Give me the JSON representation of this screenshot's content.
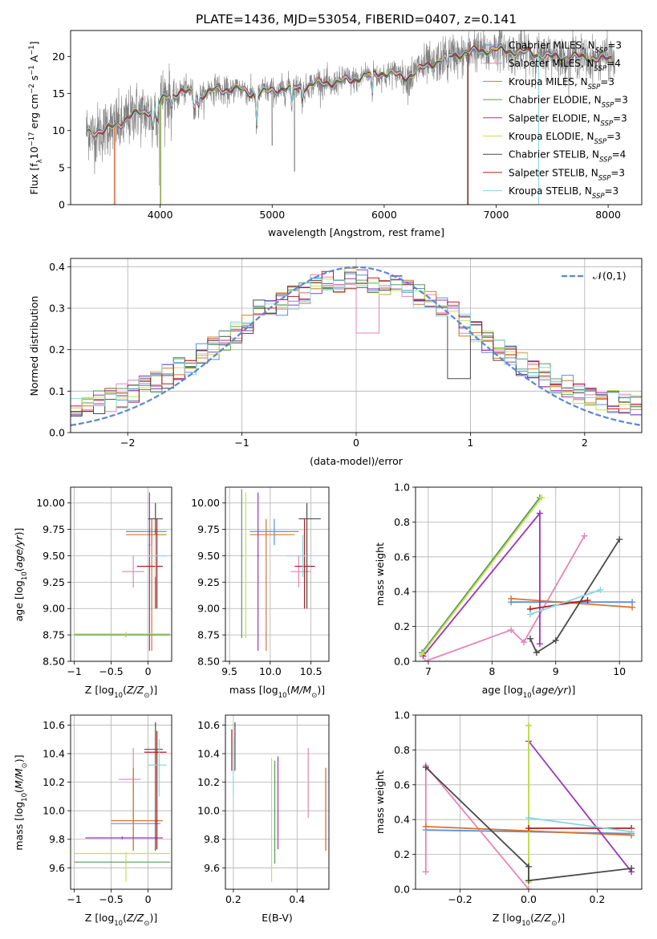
{
  "figure": {
    "title": "PLATE=1436, MJD=53054, FIBERID=0407, z=0.141"
  },
  "models": [
    {
      "name": "Chabrier MILES",
      "nssp": "3",
      "color": "#5a8ee0"
    },
    {
      "name": "Salpeter MILES",
      "nssp": "4",
      "color": "#e784b6"
    },
    {
      "name": "Kroupa MILES",
      "nssp": "3",
      "color": "#d8762c"
    },
    {
      "name": "Chabrier ELODIE",
      "nssp": "3",
      "color": "#5a9a5a"
    },
    {
      "name": "Salpeter ELODIE",
      "nssp": "3",
      "color": "#9a36b8"
    },
    {
      "name": "Kroupa ELODIE",
      "nssp": "3",
      "color": "#c8e050"
    },
    {
      "name": "Chabrier STELIB",
      "nssp": "4",
      "color": "#4a4a4a"
    },
    {
      "name": "Salpeter STELIB",
      "nssp": "3",
      "color": "#b41e1e"
    },
    {
      "name": "Kroupa STELIB",
      "nssp": "3",
      "color": "#80d8e0"
    }
  ],
  "data_color": "#808080",
  "gauss_color": "#5b86d6",
  "chart_data": [
    {
      "id": "spectrum",
      "type": "line",
      "xlabel": "wavelength [Angstrom, rest frame]",
      "ylabel": "Flux [f_λ10^-17 erg cm^-2 s^-1 A^-1]",
      "xlim": [
        3200,
        8300
      ],
      "ylim": [
        0,
        23.5
      ],
      "xticks": [
        4000,
        5000,
        6000,
        7000,
        8000
      ],
      "yticks": [
        0,
        5,
        10,
        15,
        20
      ],
      "grid": false,
      "legend": "right",
      "continuum_knots": [
        [
          3340,
          9.8
        ],
        [
          3500,
          10.0
        ],
        [
          3650,
          11.0
        ],
        [
          3750,
          12.0
        ],
        [
          3850,
          12.5
        ],
        [
          3950,
          13.0
        ],
        [
          4050,
          14.6
        ],
        [
          4200,
          15.2
        ],
        [
          4350,
          14.8
        ],
        [
          4500,
          15.5
        ],
        [
          4700,
          15.5
        ],
        [
          4900,
          15.0
        ],
        [
          5000,
          15.4
        ],
        [
          5200,
          15.8
        ],
        [
          5400,
          16.3
        ],
        [
          5600,
          16.5
        ],
        [
          5800,
          17.3
        ],
        [
          6000,
          17.8
        ],
        [
          6200,
          17.3
        ],
        [
          6400,
          18.8
        ],
        [
          6600,
          20.2
        ],
        [
          6800,
          20.6
        ],
        [
          7000,
          21.0
        ],
        [
          7200,
          20.6
        ],
        [
          7400,
          20.2
        ],
        [
          7600,
          19.9
        ],
        [
          7800,
          19.8
        ],
        [
          8000,
          19.7
        ],
        [
          8060,
          19.6
        ]
      ],
      "observed_range": [
        3340,
        8060
      ],
      "model_drops": [
        3590,
        3600,
        3590,
        4005,
        4000,
        4000,
        6750,
        6745,
        7380
      ]
    },
    {
      "id": "residuals",
      "type": "line",
      "xlabel": "(data-model)/error",
      "ylabel": "Normed distribution",
      "xlim": [
        -2.5,
        2.5
      ],
      "ylim": [
        0,
        0.42
      ],
      "xticks": [
        -2,
        -1,
        0,
        1,
        2
      ],
      "yticks": [
        0,
        0.1,
        0.2,
        0.3,
        0.4
      ],
      "grid": true,
      "legend": "top-right",
      "gauss_label": "𝒩(0,1)",
      "bin_width": 0.1
    },
    {
      "id": "age-vs-z",
      "type": "scatter",
      "xlabel": "Z [log10(Z/Z☉)]",
      "ylabel": "age [log10(age/yr)]",
      "xlim": [
        -1.05,
        0.32
      ],
      "ylim": [
        8.5,
        10.15
      ],
      "xticks": [
        -1.0,
        -0.5,
        0.0
      ],
      "yticks": [
        8.5,
        8.75,
        9.0,
        9.25,
        9.5,
        9.75,
        10.0
      ],
      "grid": true,
      "errorbars": [
        {
          "series": 0,
          "x": 0.05,
          "xlo": -0.3,
          "xhi": 0.25,
          "y": 9.73,
          "ylo": 9.6,
          "yhi": 9.85
        },
        {
          "series": 1,
          "x": -0.2,
          "xlo": -0.35,
          "xhi": -0.05,
          "y": 9.35,
          "ylo": 9.2,
          "yhi": 9.5
        },
        {
          "series": 2,
          "x": 0.05,
          "xlo": -0.3,
          "xhi": 0.25,
          "y": 9.7,
          "ylo": 8.6,
          "yhi": 9.85
        },
        {
          "series": 3,
          "x": -0.3,
          "xlo": -1.0,
          "xhi": 0.3,
          "y": 8.75,
          "ylo": 8.73,
          "yhi": 8.77
        },
        {
          "series": 4,
          "x": 0.02,
          "xlo": 0.01,
          "xhi": 0.03,
          "y": 9.6,
          "ylo": 8.6,
          "yhi": 10.1
        },
        {
          "series": 5,
          "x": -0.3,
          "xlo": -1.0,
          "xhi": 0.3,
          "y": 8.76,
          "ylo": 8.74,
          "yhi": 8.78
        },
        {
          "series": 6,
          "x": 0.1,
          "xlo": 0.0,
          "xhi": 0.2,
          "y": 9.85,
          "ylo": 9.0,
          "yhi": 10.0
        },
        {
          "series": 7,
          "x": 0.12,
          "xlo": -0.15,
          "xhi": 0.2,
          "y": 9.4,
          "ylo": 9.0,
          "yhi": 9.85
        },
        {
          "series": 8,
          "x": 0.1,
          "xlo": 0.0,
          "xhi": 0.25,
          "y": 9.5,
          "ylo": 9.3,
          "yhi": 9.7
        }
      ]
    },
    {
      "id": "age-vs-mass",
      "type": "scatter",
      "xlabel": "mass [log10(M/M☉)]",
      "ylabel": "",
      "xlim": [
        9.45,
        10.72
      ],
      "ylim": [
        8.5,
        10.15
      ],
      "xticks": [
        9.5,
        10.0,
        10.5
      ],
      "yticks": [
        8.5,
        8.75,
        9.0,
        9.25,
        9.5,
        9.75,
        10.0
      ],
      "grid": true,
      "errorbars": [
        {
          "series": 0,
          "x": 10.05,
          "xlo": 9.75,
          "xhi": 10.35,
          "y": 9.73,
          "ylo": 9.6,
          "yhi": 9.85
        },
        {
          "series": 1,
          "x": 10.35,
          "xlo": 10.25,
          "xhi": 10.5,
          "y": 9.35,
          "ylo": 9.2,
          "yhi": 9.5
        },
        {
          "series": 2,
          "x": 9.95,
          "xlo": 9.75,
          "xhi": 10.3,
          "y": 9.7,
          "ylo": 8.6,
          "yhi": 9.85
        },
        {
          "series": 3,
          "x": 9.65,
          "xlo": 9.64,
          "xhi": 9.66,
          "y": 9.5,
          "ylo": 8.72,
          "yhi": 10.13
        },
        {
          "series": 4,
          "x": 9.85,
          "xlo": 9.84,
          "xhi": 9.86,
          "y": 9.5,
          "ylo": 8.6,
          "yhi": 10.1
        },
        {
          "series": 5,
          "x": 9.7,
          "xlo": 9.69,
          "xhi": 9.71,
          "y": 9.5,
          "ylo": 8.72,
          "yhi": 10.1
        },
        {
          "series": 6,
          "x": 10.45,
          "xlo": 10.35,
          "xhi": 10.62,
          "y": 9.85,
          "ylo": 9.0,
          "yhi": 10.0
        },
        {
          "series": 7,
          "x": 10.42,
          "xlo": 10.3,
          "xhi": 10.55,
          "y": 9.4,
          "ylo": 9.0,
          "yhi": 9.85
        },
        {
          "series": 8,
          "x": 10.4,
          "xlo": 10.2,
          "xhi": 10.45,
          "y": 9.5,
          "ylo": 9.3,
          "yhi": 9.7
        }
      ]
    },
    {
      "id": "weight-vs-age",
      "type": "line",
      "xlabel": "age [log10(age/yr)]",
      "ylabel": "mass weight",
      "xlim": [
        6.8,
        10.35
      ],
      "ylim": [
        0,
        1
      ],
      "xticks": [
        7,
        8,
        9,
        10
      ],
      "yticks": [
        0.0,
        0.2,
        0.4,
        0.6,
        0.8,
        1.0
      ],
      "grid": true,
      "series": [
        {
          "series": 0,
          "points": [
            [
              8.3,
              0.34
            ],
            [
              10.2,
              0.34
            ]
          ]
        },
        {
          "series": 1,
          "points": [
            [
              6.95,
              0.0
            ],
            [
              8.3,
              0.18
            ],
            [
              8.5,
              0.11
            ],
            [
              9.45,
              0.72
            ]
          ]
        },
        {
          "series": 2,
          "points": [
            [
              8.3,
              0.36
            ],
            [
              10.2,
              0.31
            ]
          ]
        },
        {
          "series": 3,
          "points": [
            [
              6.9,
              0.05
            ],
            [
              8.75,
              0.94
            ]
          ]
        },
        {
          "series": 4,
          "points": [
            [
              6.92,
              0.03
            ],
            [
              8.75,
              0.85
            ],
            [
              8.75,
              0.1
            ]
          ]
        },
        {
          "series": 5,
          "points": [
            [
              6.9,
              0.04
            ],
            [
              8.78,
              0.94
            ]
          ]
        },
        {
          "series": 6,
          "points": [
            [
              8.6,
              0.13
            ],
            [
              8.7,
              0.05
            ],
            [
              9.0,
              0.12
            ],
            [
              10.0,
              0.7
            ]
          ]
        },
        {
          "series": 7,
          "points": [
            [
              8.6,
              0.3
            ],
            [
              9.5,
              0.35
            ]
          ]
        },
        {
          "series": 8,
          "points": [
            [
              8.6,
              0.27
            ],
            [
              9.7,
              0.41
            ]
          ]
        }
      ]
    },
    {
      "id": "mass-vs-z",
      "type": "scatter",
      "xlabel": "Z [log10(Z/Z☉)]",
      "ylabel": "mass [log10(M/M☉)]",
      "xlim": [
        -1.05,
        0.32
      ],
      "ylim": [
        9.45,
        10.67
      ],
      "xticks": [
        -1.0,
        -0.5,
        0.0
      ],
      "yticks": [
        9.6,
        9.8,
        10.0,
        10.2,
        10.4,
        10.6
      ],
      "grid": true,
      "errorbars": [
        {
          "series": 0,
          "x": -0.2,
          "xlo": -0.5,
          "xhi": 0.17,
          "y": 9.91,
          "ylo": 9.72,
          "yhi": 10.3
        },
        {
          "series": 1,
          "x": -0.2,
          "xlo": -0.4,
          "xhi": -0.1,
          "y": 10.22,
          "ylo": 10.1,
          "yhi": 10.44
        },
        {
          "series": 2,
          "x": -0.2,
          "xlo": -0.5,
          "xhi": 0.2,
          "y": 9.93,
          "ylo": 9.72,
          "yhi": 10.3
        },
        {
          "series": 3,
          "x": -0.3,
          "xlo": -1.0,
          "xhi": 0.3,
          "y": 9.64,
          "ylo": 9.63,
          "yhi": 9.65
        },
        {
          "series": 4,
          "x": -0.35,
          "xlo": -0.85,
          "xhi": 0.2,
          "y": 9.81,
          "ylo": 9.8,
          "yhi": 9.82
        },
        {
          "series": 5,
          "x": -0.3,
          "xlo": -1.0,
          "xhi": 0.3,
          "y": 9.7,
          "ylo": 9.5,
          "yhi": 9.71
        },
        {
          "series": 6,
          "x": 0.1,
          "xlo": -0.05,
          "xhi": 0.2,
          "y": 10.43,
          "ylo": 9.72,
          "yhi": 10.62
        },
        {
          "series": 7,
          "x": 0.12,
          "xlo": -0.05,
          "xhi": 0.25,
          "y": 10.41,
          "ylo": 9.73,
          "yhi": 10.56
        },
        {
          "series": 8,
          "x": 0.15,
          "xlo": 0.0,
          "xhi": 0.25,
          "y": 10.32,
          "ylo": 10.1,
          "yhi": 10.5
        }
      ]
    },
    {
      "id": "mass-vs-ebv",
      "type": "scatter",
      "xlabel": "E(B-V)",
      "ylabel": "",
      "xlim": [
        0.175,
        0.5
      ],
      "ylim": [
        9.45,
        10.67
      ],
      "xticks": [
        0.2,
        0.4
      ],
      "yticks": [
        9.6,
        9.8,
        10.0,
        10.2,
        10.4,
        10.6
      ],
      "grid": true,
      "errorbars": [
        {
          "series": 0,
          "x": 0.49,
          "xlo": 0.49,
          "xhi": 0.49,
          "y": 9.95,
          "ylo": 9.72,
          "yhi": 10.3
        },
        {
          "series": 1,
          "x": 0.435,
          "xlo": 0.435,
          "xhi": 0.435,
          "y": 10.2,
          "ylo": 9.95,
          "yhi": 10.44
        },
        {
          "series": 2,
          "x": 0.49,
          "xlo": 0.49,
          "xhi": 0.49,
          "y": 10.0,
          "ylo": 9.72,
          "yhi": 10.3
        },
        {
          "series": 3,
          "x": 0.33,
          "xlo": 0.33,
          "xhi": 0.33,
          "y": 10.0,
          "ylo": 9.63,
          "yhi": 10.35
        },
        {
          "series": 4,
          "x": 0.34,
          "xlo": 0.34,
          "xhi": 0.34,
          "y": 10.1,
          "ylo": 9.73,
          "yhi": 10.38
        },
        {
          "series": 5,
          "x": 0.32,
          "xlo": 0.32,
          "xhi": 0.32,
          "y": 10.0,
          "ylo": 9.5,
          "yhi": 10.37
        },
        {
          "series": 6,
          "x": 0.205,
          "xlo": 0.205,
          "xhi": 0.205,
          "y": 10.45,
          "ylo": 10.28,
          "yhi": 10.62
        },
        {
          "series": 7,
          "x": 0.195,
          "xlo": 0.195,
          "xhi": 0.195,
          "y": 10.41,
          "ylo": 10.28,
          "yhi": 10.57
        },
        {
          "series": 8,
          "x": 0.2,
          "xlo": 0.2,
          "xhi": 0.2,
          "y": 10.32,
          "ylo": 10.1,
          "yhi": 10.5
        }
      ]
    },
    {
      "id": "weight-vs-z",
      "type": "line",
      "xlabel": "Z [log10(Z/Z☉)]",
      "ylabel": "mass weight",
      "xlim": [
        -0.33,
        0.33
      ],
      "ylim": [
        0,
        1
      ],
      "xticks": [
        -0.2,
        0.0,
        0.2
      ],
      "yticks": [
        0.0,
        0.2,
        0.4,
        0.6,
        0.8,
        1.0
      ],
      "grid": true,
      "series": [
        {
          "series": 0,
          "points": [
            [
              -0.3,
              0.34
            ],
            [
              0.3,
              0.32
            ]
          ]
        },
        {
          "series": 1,
          "points": [
            [
              -0.3,
              0.1
            ],
            [
              -0.3,
              0.71
            ],
            [
              0.0,
              0.0
            ]
          ]
        },
        {
          "series": 2,
          "points": [
            [
              -0.3,
              0.36
            ],
            [
              0.3,
              0.31
            ]
          ]
        },
        {
          "series": 3,
          "points": [
            [
              0.0,
              0.05
            ],
            [
              0.0,
              0.94
            ]
          ]
        },
        {
          "series": 4,
          "points": [
            [
              0.0,
              0.85
            ],
            [
              0.3,
              0.1
            ]
          ]
        },
        {
          "series": 5,
          "points": [
            [
              0.0,
              0.04
            ],
            [
              0.0,
              0.94
            ]
          ]
        },
        {
          "series": 6,
          "points": [
            [
              -0.3,
              0.7
            ],
            [
              0.0,
              0.13
            ],
            [
              0.0,
              0.05
            ],
            [
              0.3,
              0.12
            ]
          ]
        },
        {
          "series": 7,
          "points": [
            [
              0.0,
              0.35
            ],
            [
              0.3,
              0.35
            ]
          ]
        },
        {
          "series": 8,
          "points": [
            [
              0.0,
              0.41
            ],
            [
              0.3,
              0.33
            ]
          ]
        }
      ]
    }
  ]
}
